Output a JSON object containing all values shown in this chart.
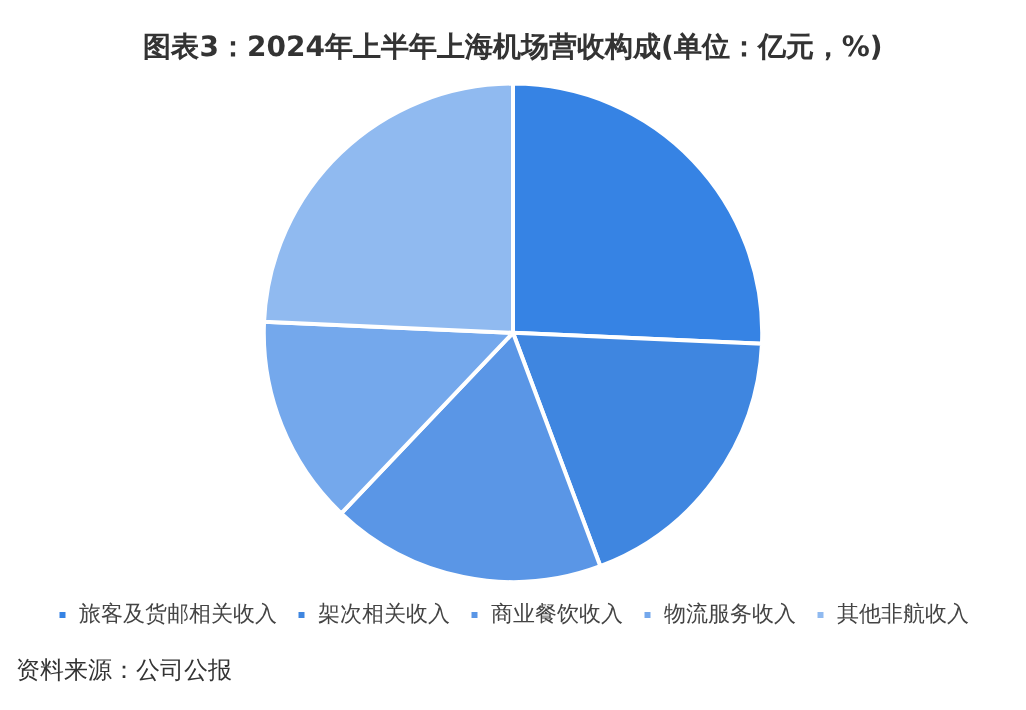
{
  "chart_data": {
    "type": "pie",
    "title": "图表3：2024年上半年上海机场营收构成(单位：亿元，%)",
    "categories": [
      "旅客及货邮相关收入",
      "架次相关收入",
      "商业餐饮收入",
      "物流服务收入",
      "其他非航收入"
    ],
    "values": [
      25.7,
      18.6,
      17.8,
      13.6,
      24.3
    ],
    "colors": [
      "#3683e4",
      "#3f86e0",
      "#5a96e6",
      "#74a8ec",
      "#90baf0"
    ],
    "legend": "bottom",
    "annotations": [
      "资料来源：公司公报"
    ]
  }
}
